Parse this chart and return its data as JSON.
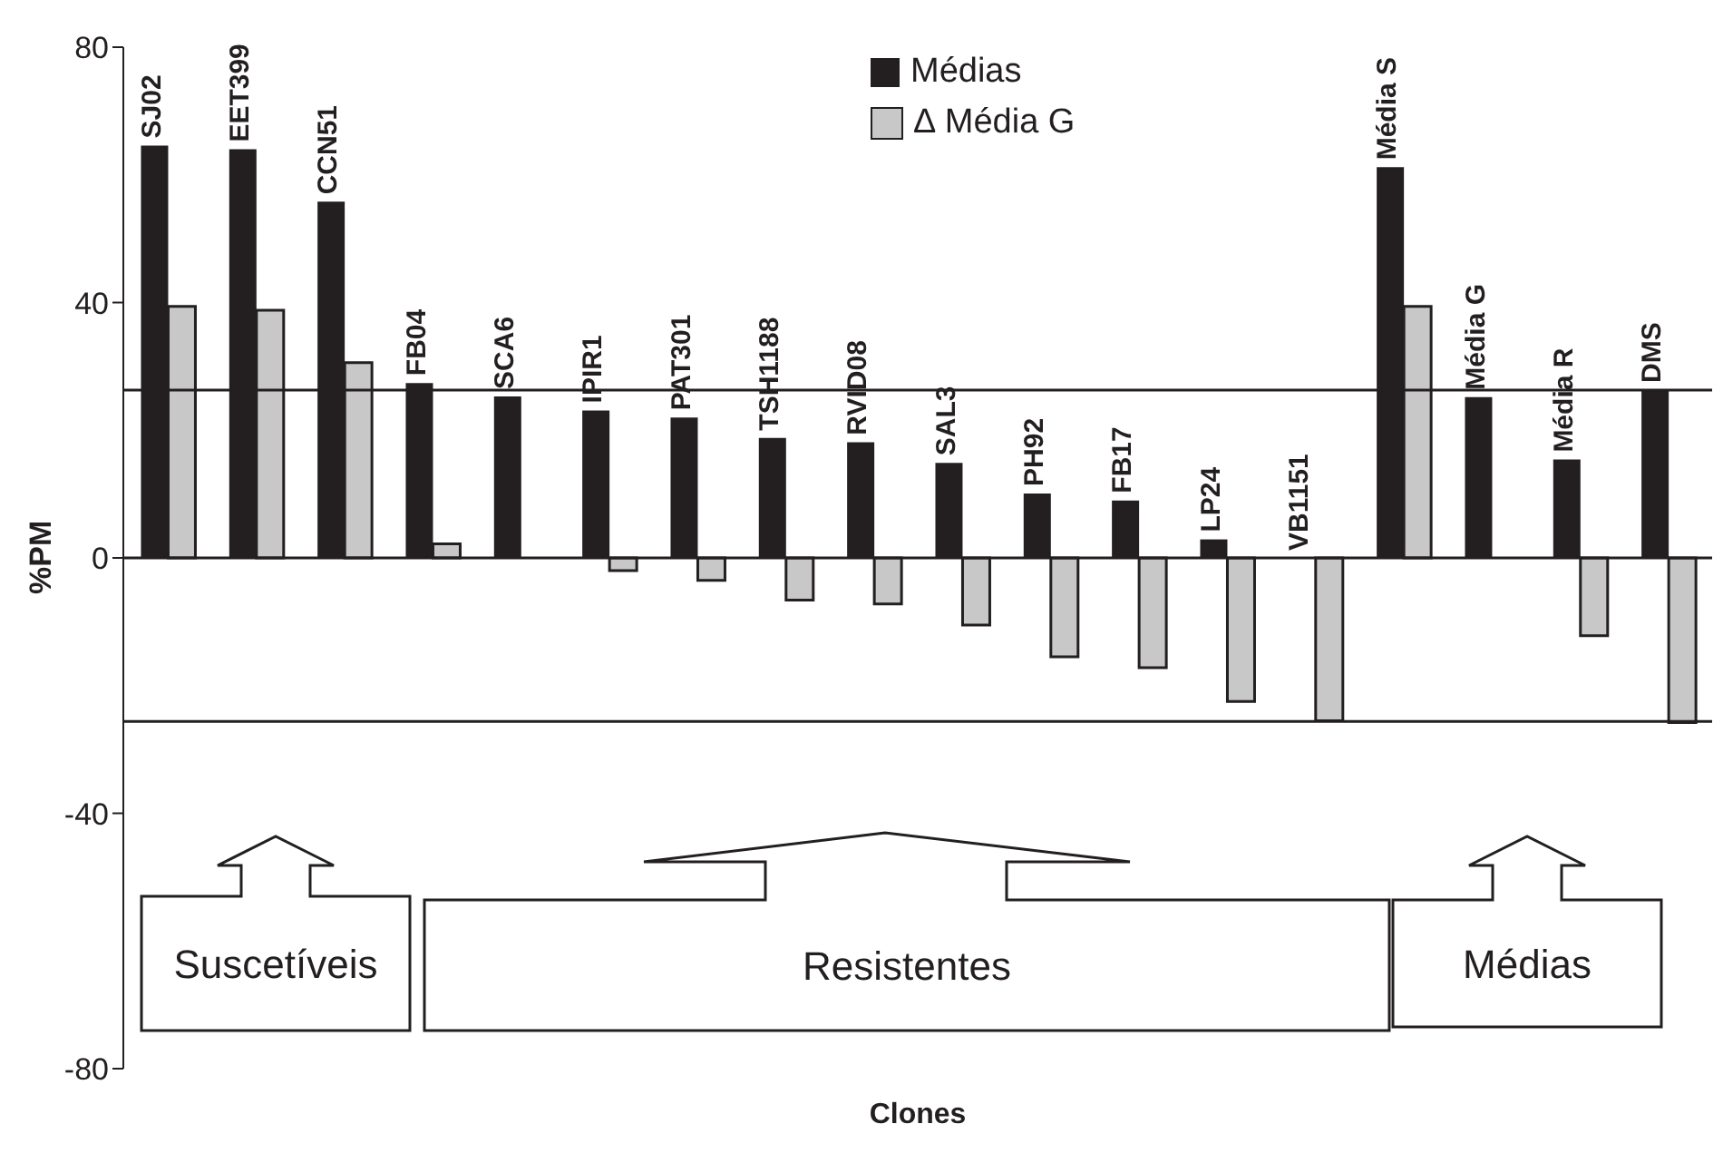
{
  "chart_data": {
    "type": "bar",
    "xlabel": "Clones",
    "ylabel": "%PM",
    "categories": [
      "SJ02",
      "EET399",
      "CCN51",
      "FB04",
      "SCA6",
      "IPIR1",
      "PAT301",
      "TSH1188",
      "RVID08",
      "SAL3",
      "PH92",
      "FB17",
      "LP24",
      "VB1151",
      "Média S",
      "Média G",
      "Média R",
      "DMS"
    ],
    "series": [
      {
        "name": "Médias",
        "color": "#231f20",
        "values": [
          64.6,
          64,
          55.8,
          27.4,
          25.3,
          23.1,
          22,
          18.8,
          18.1,
          14.9,
          10.1,
          9,
          2.9,
          0,
          61.2,
          25.2,
          15.4,
          26.3
        ]
      },
      {
        "name": "∆ Média G",
        "color": "#c8c8c8",
        "values": [
          39.4,
          38.8,
          30.6,
          2.2,
          0,
          -2,
          -3.5,
          -6.6,
          -7.2,
          -10.5,
          -15.5,
          -17.2,
          -22.5,
          -25.5,
          39.4,
          0,
          -12.2,
          -25.8
        ]
      }
    ],
    "ylim": [
      -80,
      80
    ],
    "yticks": [
      -80,
      -40,
      0,
      40,
      80
    ],
    "legend": "top",
    "ref_lines": [
      {
        "axis": "y",
        "value": 0,
        "color": "#231f20"
      },
      {
        "axis": "y",
        "value": 26.3,
        "color": "#231f20"
      },
      {
        "axis": "y",
        "value": -25.6,
        "color": "#231f20"
      }
    ],
    "annotations": [
      "Suscetíveis",
      "Resistentes",
      "Médias"
    ]
  }
}
